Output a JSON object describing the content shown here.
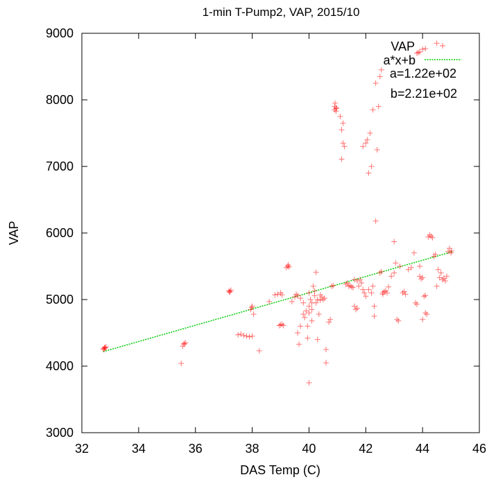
{
  "chart_data": {
    "type": "scatter",
    "title": "1-min T-Pump2, VAP, 2015/10",
    "xlabel": "DAS Temp (C)",
    "ylabel": "VAP",
    "xlim": [
      32,
      46
    ],
    "ylim": [
      3000,
      9000
    ],
    "xticks": [
      "32",
      "34",
      "36",
      "38",
      "40",
      "42",
      "44",
      "46"
    ],
    "yticks": [
      "3000",
      "4000",
      "5000",
      "6000",
      "7000",
      "8000",
      "9000"
    ],
    "grid": false,
    "legend_position": "top-right",
    "series": [
      {
        "name": "VAP",
        "marker": "+",
        "color": "#ff0000",
        "points": [
          [
            32.8,
            4280
          ],
          [
            32.75,
            4260
          ],
          [
            32.85,
            4290
          ],
          [
            32.8,
            4270
          ],
          [
            32.78,
            4250
          ],
          [
            32.82,
            4275
          ],
          [
            35.5,
            4040
          ],
          [
            35.55,
            4300
          ],
          [
            35.6,
            4330
          ],
          [
            35.65,
            4350
          ],
          [
            35.6,
            4340
          ],
          [
            37.2,
            5110
          ],
          [
            37.25,
            5140
          ],
          [
            37.22,
            5120
          ],
          [
            37.18,
            5130
          ],
          [
            37.6,
            4480
          ],
          [
            37.7,
            4460
          ],
          [
            37.8,
            4450
          ],
          [
            37.9,
            4440
          ],
          [
            38.0,
            4450
          ],
          [
            37.5,
            4470
          ],
          [
            37.95,
            4850
          ],
          [
            38.0,
            4900
          ],
          [
            37.98,
            4880
          ],
          [
            38.05,
            4780
          ],
          [
            38.25,
            4230
          ],
          [
            38.6,
            4970
          ],
          [
            38.8,
            5070
          ],
          [
            38.9,
            5080
          ],
          [
            39.0,
            5100
          ],
          [
            39.05,
            5070
          ],
          [
            38.95,
            4610
          ],
          [
            39.0,
            4620
          ],
          [
            39.1,
            4610
          ],
          [
            39.05,
            4630
          ],
          [
            39.2,
            5480
          ],
          [
            39.25,
            5500
          ],
          [
            39.3,
            5490
          ],
          [
            39.27,
            5520
          ],
          [
            39.4,
            4970
          ],
          [
            39.5,
            5040
          ],
          [
            39.55,
            5080
          ],
          [
            39.6,
            5060
          ],
          [
            39.6,
            4500
          ],
          [
            39.7,
            4600
          ],
          [
            39.65,
            4330
          ],
          [
            39.7,
            5020
          ],
          [
            39.8,
            4950
          ],
          [
            39.8,
            4780
          ],
          [
            39.85,
            4730
          ],
          [
            39.9,
            4830
          ],
          [
            39.95,
            4600
          ],
          [
            39.95,
            4420
          ],
          [
            40.0,
            5100
          ],
          [
            40.0,
            4900
          ],
          [
            40.0,
            4800
          ],
          [
            40.0,
            3750
          ],
          [
            40.05,
            5000
          ],
          [
            40.1,
            4950
          ],
          [
            40.1,
            4850
          ],
          [
            40.1,
            4680
          ],
          [
            40.15,
            5200
          ],
          [
            40.2,
            5060
          ],
          [
            40.2,
            5130
          ],
          [
            40.25,
            5410
          ],
          [
            40.25,
            4950
          ],
          [
            40.3,
            4400
          ],
          [
            40.3,
            5000
          ],
          [
            40.35,
            4780
          ],
          [
            40.4,
            5070
          ],
          [
            40.4,
            4990
          ],
          [
            40.45,
            5040
          ],
          [
            40.5,
            5000
          ],
          [
            40.55,
            5020
          ],
          [
            40.6,
            4250
          ],
          [
            40.6,
            4050
          ],
          [
            40.7,
            4660
          ],
          [
            40.75,
            4700
          ],
          [
            40.8,
            5200
          ],
          [
            40.85,
            5210
          ],
          [
            40.9,
            7850
          ],
          [
            40.9,
            7900
          ],
          [
            40.95,
            7870
          ],
          [
            40.92,
            7950
          ],
          [
            40.95,
            7830
          ],
          [
            40.97,
            7880
          ],
          [
            41.1,
            7750
          ],
          [
            41.15,
            7550
          ],
          [
            41.2,
            7650
          ],
          [
            41.2,
            7350
          ],
          [
            41.15,
            7110
          ],
          [
            41.25,
            7300
          ],
          [
            41.3,
            5230
          ],
          [
            41.35,
            5250
          ],
          [
            41.4,
            5200
          ],
          [
            41.45,
            5210
          ],
          [
            41.5,
            5190
          ],
          [
            41.55,
            5180
          ],
          [
            41.6,
            4900
          ],
          [
            41.65,
            4850
          ],
          [
            41.6,
            5300
          ],
          [
            41.7,
            5280
          ],
          [
            41.7,
            4870
          ],
          [
            41.75,
            5200
          ],
          [
            41.8,
            5300
          ],
          [
            41.85,
            5250
          ],
          [
            41.9,
            5150
          ],
          [
            41.9,
            7300
          ],
          [
            41.95,
            5100
          ],
          [
            42.0,
            5050
          ],
          [
            42.0,
            7350
          ],
          [
            42.05,
            7400
          ],
          [
            42.1,
            5150
          ],
          [
            42.1,
            6900
          ],
          [
            42.15,
            7500
          ],
          [
            42.2,
            5100
          ],
          [
            42.2,
            7000
          ],
          [
            42.25,
            5200
          ],
          [
            42.25,
            7850
          ],
          [
            42.3,
            4750
          ],
          [
            42.3,
            4900
          ],
          [
            42.35,
            8250
          ],
          [
            42.35,
            6180
          ],
          [
            42.4,
            7250
          ],
          [
            42.45,
            7900
          ],
          [
            42.5,
            5400
          ],
          [
            42.55,
            5420
          ],
          [
            42.5,
            8350
          ],
          [
            42.55,
            8450
          ],
          [
            42.6,
            5100
          ],
          [
            42.6,
            5080
          ],
          [
            42.65,
            5120
          ],
          [
            42.7,
            5130
          ],
          [
            42.75,
            5100
          ],
          [
            42.8,
            5190
          ],
          [
            42.9,
            5350
          ],
          [
            43.0,
            5870
          ],
          [
            43.0,
            5400
          ],
          [
            43.05,
            5550
          ],
          [
            43.1,
            4700
          ],
          [
            43.15,
            4680
          ],
          [
            43.2,
            5500
          ],
          [
            43.3,
            5100
          ],
          [
            43.35,
            5120
          ],
          [
            43.4,
            5080
          ],
          [
            43.5,
            5450
          ],
          [
            43.6,
            5480
          ],
          [
            43.7,
            5700
          ],
          [
            43.75,
            4950
          ],
          [
            43.8,
            4930
          ],
          [
            43.9,
            5500
          ],
          [
            43.9,
            5350
          ],
          [
            43.95,
            5310
          ],
          [
            44.0,
            5330
          ],
          [
            44.0,
            4700
          ],
          [
            44.05,
            5050
          ],
          [
            44.1,
            5060
          ],
          [
            44.1,
            4800
          ],
          [
            44.15,
            4780
          ],
          [
            44.2,
            5940
          ],
          [
            44.25,
            5970
          ],
          [
            44.3,
            5950
          ],
          [
            44.35,
            5930
          ],
          [
            44.4,
            5650
          ],
          [
            44.45,
            5680
          ],
          [
            44.5,
            5200
          ],
          [
            44.55,
            5450
          ],
          [
            44.6,
            5330
          ],
          [
            44.65,
            5400
          ],
          [
            44.7,
            5300
          ],
          [
            44.75,
            5320
          ],
          [
            44.8,
            5280
          ],
          [
            44.85,
            5350
          ],
          [
            44.9,
            5720
          ],
          [
            44.95,
            5770
          ],
          [
            45.0,
            5700
          ],
          [
            45.02,
            5730
          ],
          [
            43.8,
            8700
          ],
          [
            43.9,
            8720
          ],
          [
            44.0,
            8760
          ],
          [
            43.85,
            8710
          ],
          [
            44.1,
            8770
          ],
          [
            44.5,
            8850
          ]
        ]
      },
      {
        "name": "a*x+b",
        "type": "line",
        "style": "dotted",
        "color": "#00cc00",
        "x": [
          32.75,
          45.05
        ],
        "y": [
          4217,
          5719
        ]
      }
    ],
    "annotations": [
      "a=1.22e+02",
      "b=2.21e+02"
    ]
  }
}
